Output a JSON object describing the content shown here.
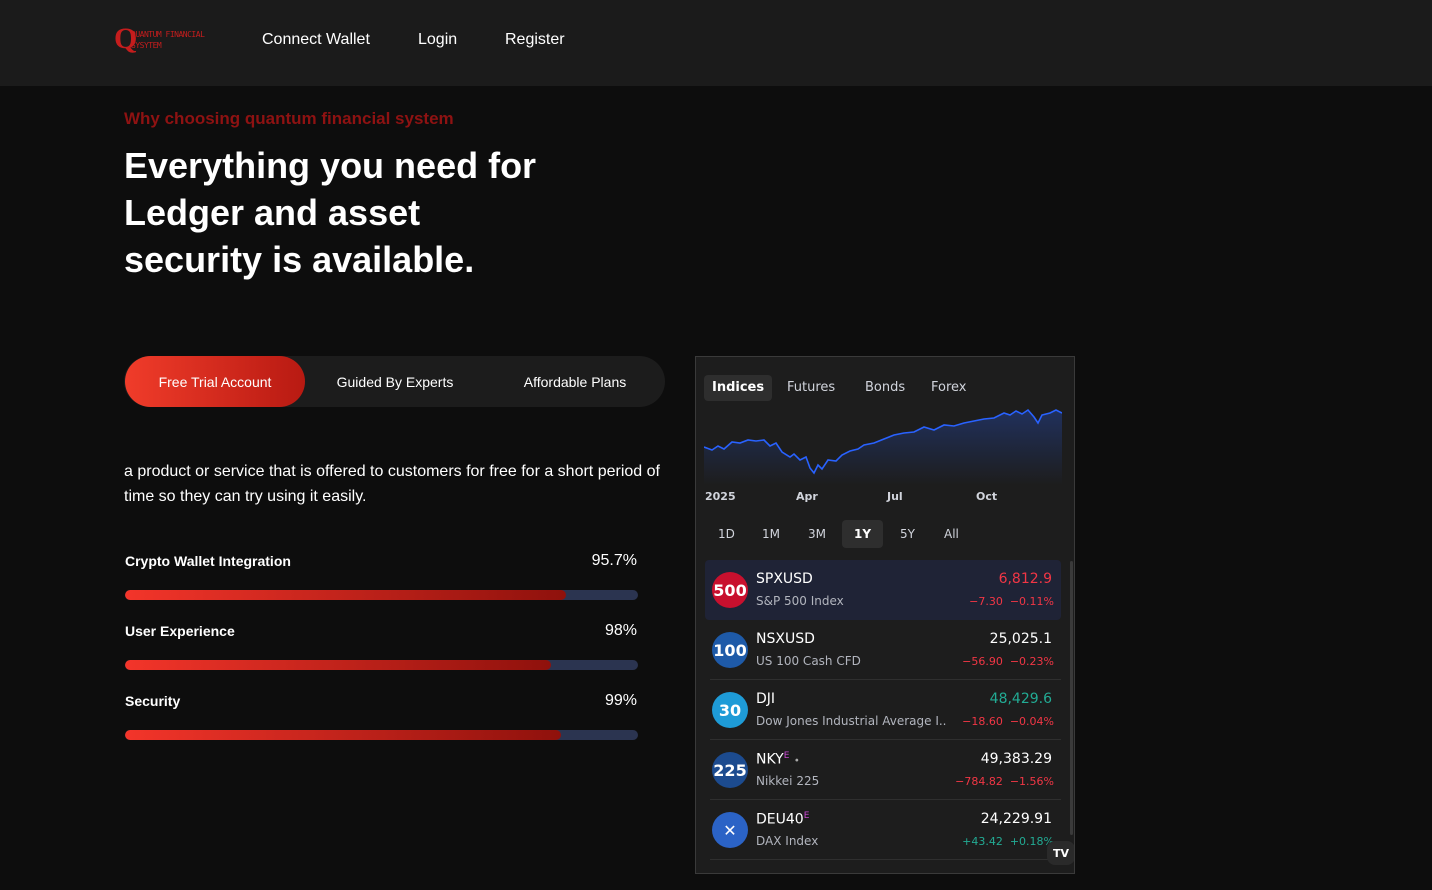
{
  "header": {
    "logo": {
      "mark": "Q",
      "line1": "QUANTUM FINANCIAL",
      "line2": "SYSYTEM"
    },
    "nav": [
      "Connect Wallet",
      "Login",
      "Register"
    ]
  },
  "hero": {
    "eyebrow": "Why choosing quantum financial system",
    "headline_lines": [
      "Everything you need for",
      "Ledger and asset",
      "security is available."
    ]
  },
  "tabs": [
    "Free Trial Account",
    "Guided By Experts",
    "Affordable Plans"
  ],
  "active_tab": "Free Trial Account",
  "description": "a product or service that is offered to customers for free for a short period of time so they can try using it easily.",
  "skills": [
    {
      "label": "Crypto Wallet Integration",
      "percent": "95.7%",
      "fill": 0.86
    },
    {
      "label": "User Experience",
      "percent": "98%",
      "fill": 0.83
    },
    {
      "label": "Security",
      "percent": "99%",
      "fill": 0.85
    }
  ],
  "market_widget": {
    "tabs": [
      "Indices",
      "Futures",
      "Bonds",
      "Forex"
    ],
    "active_tab": "Indices",
    "chart_labels": [
      "2025",
      "Apr",
      "Jul",
      "Oct"
    ],
    "ranges": [
      "1D",
      "1M",
      "3M",
      "1Y",
      "5Y",
      "All"
    ],
    "active_range": "1Y",
    "symbols": [
      {
        "badge": "500",
        "badge_color": "#c8102e",
        "symbol": "SPXUSD",
        "sup": "",
        "dot": "",
        "name": "S&P 500 Index",
        "price": "6,812.9",
        "price_color": "red",
        "change": "−7.30",
        "change_pct": "−0.11%",
        "change_color": "red"
      },
      {
        "badge": "100",
        "badge_color": "#1e5aa8",
        "symbol": "NSXUSD",
        "sup": "",
        "dot": "",
        "name": "US 100 Cash CFD",
        "price": "25,025.1",
        "price_color": "white",
        "change": "−56.90",
        "change_pct": "−0.23%",
        "change_color": "red"
      },
      {
        "badge": "30",
        "badge_color": "#1e9bd7",
        "symbol": "DJI",
        "sup": "",
        "dot": "",
        "name": "Dow Jones Industrial Average I...",
        "price": "48,429.6",
        "price_color": "green",
        "change": "−18.60",
        "change_pct": "−0.04%",
        "change_color": "red"
      },
      {
        "badge": "225",
        "badge_color": "#1c4b8f",
        "symbol": "NKY",
        "sup": "E",
        "dot": "•",
        "name": "Nikkei 225",
        "price": "49,383.29",
        "price_color": "white",
        "change": "−784.82",
        "change_pct": "−1.56%",
        "change_color": "red"
      },
      {
        "badge": "✕",
        "badge_color": "#2b63c6",
        "symbol": "DEU40",
        "sup": "E",
        "dot": "",
        "name": "DAX Index",
        "price": "24,229.91",
        "price_color": "white",
        "change": "+43.42",
        "change_pct": "+0.18%",
        "change_color": "green"
      }
    ],
    "tv_logo": "TV"
  }
}
